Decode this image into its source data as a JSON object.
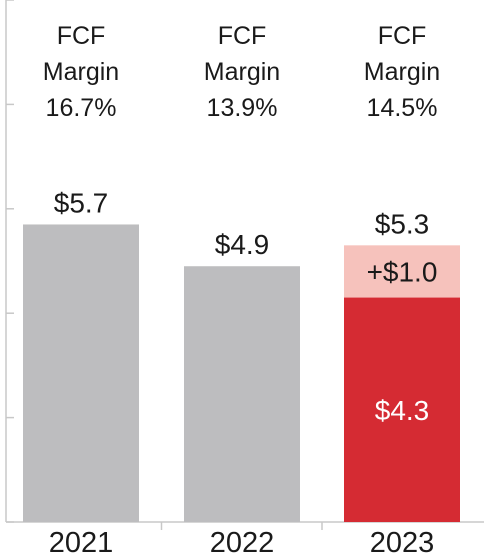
{
  "chart_data": {
    "type": "bar",
    "stacked": true,
    "categories": [
      "2021",
      "2022",
      "2023"
    ],
    "series": [
      {
        "values": [
          5.7,
          4.9,
          4.3
        ],
        "colors": [
          "#bdbdbf",
          "#bdbdbf",
          "#d52b33"
        ]
      },
      {
        "values": [
          0,
          0,
          1.0
        ],
        "colors": [
          "#f6c2bc",
          "#f6c2bc",
          "#f6c2bc"
        ]
      }
    ],
    "total_labels": [
      "$5.7",
      "$4.9",
      "$5.3"
    ],
    "segment_labels": [
      {
        "category": "2023",
        "segment": 0,
        "text": "$4.3"
      },
      {
        "category": "2023",
        "segment": 1,
        "text": "+$1.0"
      }
    ],
    "annotations": [
      {
        "category": "2021",
        "lines": [
          "FCF",
          "Margin",
          "16.7%"
        ]
      },
      {
        "category": "2022",
        "lines": [
          "FCF",
          "Margin",
          "13.9%"
        ]
      },
      {
        "category": "2023",
        "lines": [
          "FCF",
          "Margin",
          "14.5%"
        ]
      }
    ],
    "ylim": [
      0,
      10
    ],
    "grid": false,
    "legend": "none",
    "axis_color": "#c8c8c8"
  }
}
